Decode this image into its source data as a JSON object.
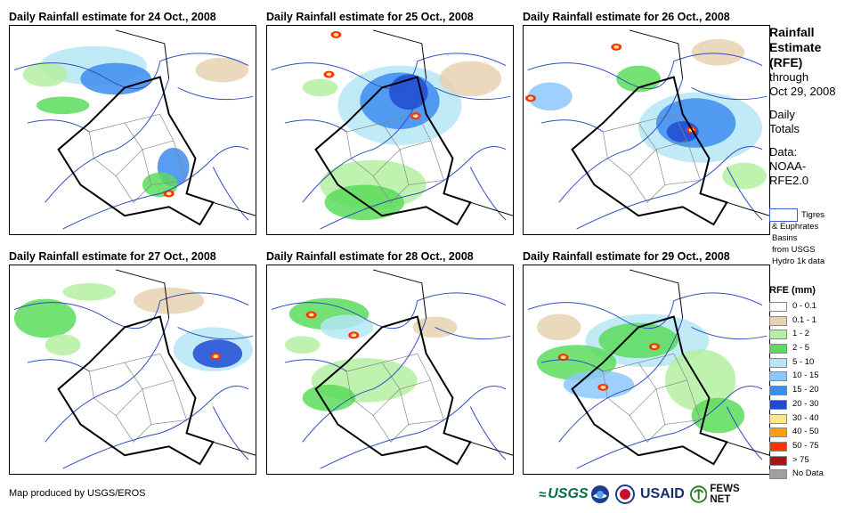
{
  "panels": [
    {
      "title": "Daily Rainfall estimate for 24 Oct., 2008"
    },
    {
      "title": "Daily Rainfall estimate for 25 Oct., 2008"
    },
    {
      "title": "Daily Rainfall estimate for 26 Oct., 2008"
    },
    {
      "title": "Daily Rainfall estimate for 27 Oct., 2008"
    },
    {
      "title": "Daily Rainfall estimate for 28 Oct., 2008"
    },
    {
      "title": "Daily Rainfall estimate for 29 Oct., 2008"
    }
  ],
  "sidebar": {
    "title_l1": "Rainfall",
    "title_l2": "Estimate",
    "title_l3": "(RFE)",
    "through": "through",
    "date": "Oct 29, 2008",
    "daily": "Daily",
    "totals": "Totals",
    "data_label": "Data:",
    "data_src1": "NOAA-",
    "data_src2": "RFE2.0"
  },
  "basin_legend": {
    "line1": "Tigres",
    "line2": "& Euphrates",
    "line3": "Basins",
    "line4": "from USGS",
    "line5": "Hydro 1k data"
  },
  "rfe_legend": {
    "header": "RFE (mm)",
    "items": [
      {
        "label": "0 - 0.1",
        "color": "#ffffff"
      },
      {
        "label": "0.1 - 1",
        "color": "#e6d2b0"
      },
      {
        "label": "1 - 2",
        "color": "#b4f0a0"
      },
      {
        "label": "2 - 5",
        "color": "#5adc5a"
      },
      {
        "label": "5 - 10",
        "color": "#b4e6f5"
      },
      {
        "label": "10 - 15",
        "color": "#8cc8ff"
      },
      {
        "label": "15 - 20",
        "color": "#3c8cf0"
      },
      {
        "label": "20 - 30",
        "color": "#1e4bd2"
      },
      {
        "label": "30 - 40",
        "color": "#ffe68c"
      },
      {
        "label": "40 - 50",
        "color": "#ffa000"
      },
      {
        "label": "50 - 75",
        "color": "#ff3200"
      },
      {
        "label": "> 75",
        "color": "#aa1414"
      },
      {
        "label": "No Data",
        "color": "#a0a0a0"
      }
    ]
  },
  "credit": "Map produced by USGS/EROS",
  "logos": {
    "usgs": "USGS",
    "usaid": "USAID",
    "fews": "FEWS NET"
  }
}
